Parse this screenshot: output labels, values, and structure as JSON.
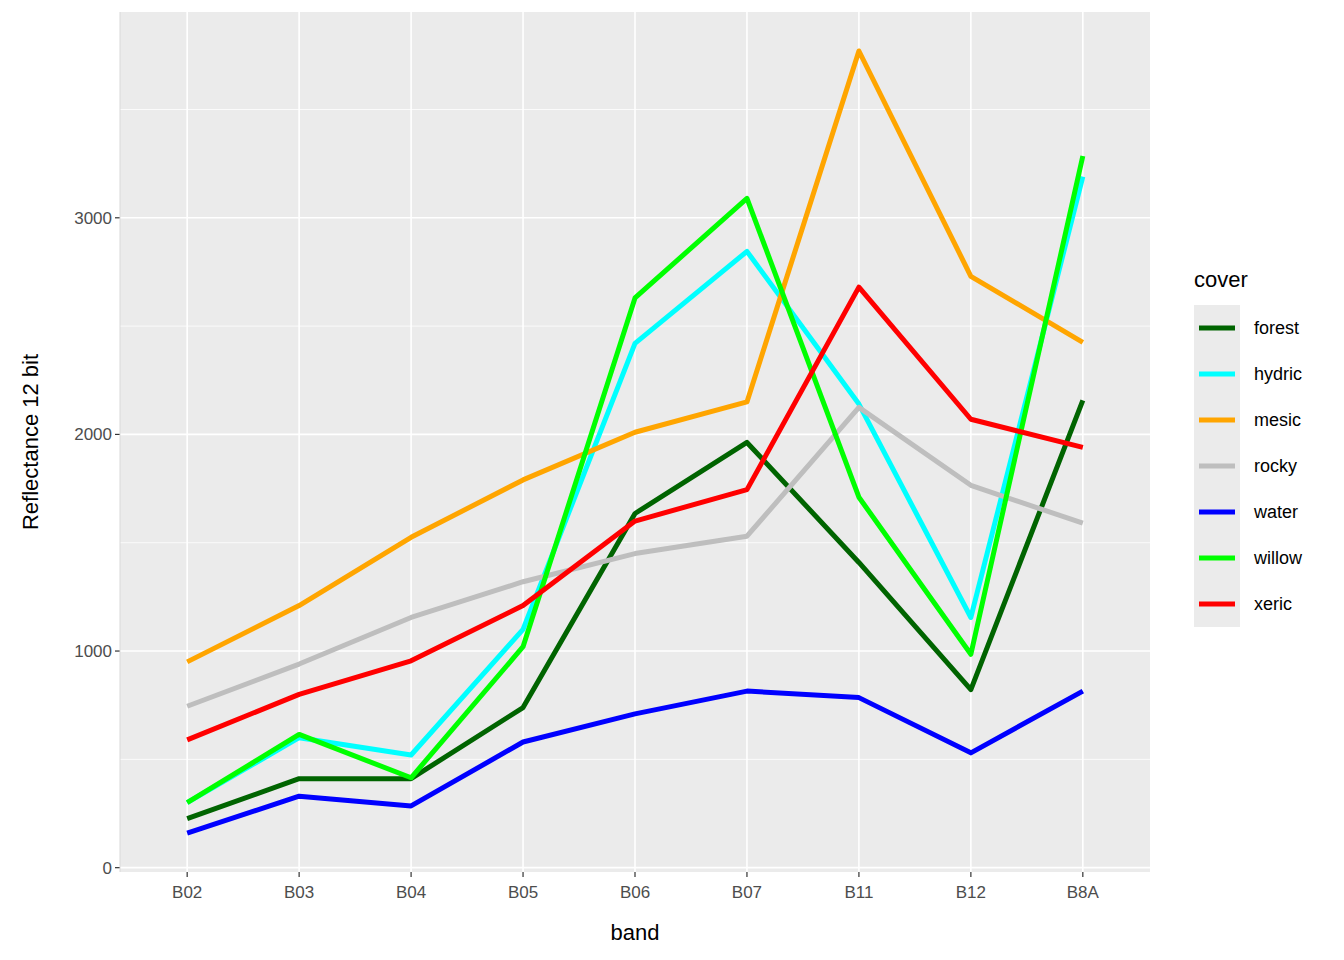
{
  "chart_data": {
    "type": "line",
    "x_label": "band",
    "y_label": "Reflectance 12 bit",
    "legend_title": "cover",
    "legend": "right",
    "grid": true,
    "categories": [
      "B02",
      "B03",
      "B04",
      "B05",
      "B06",
      "B07",
      "B11",
      "B12",
      "B8A"
    ],
    "ylim": [
      -20,
      3950
    ],
    "yticks": [
      0,
      1000,
      2000,
      3000
    ],
    "series": [
      {
        "name": "forest",
        "color": "#006400",
        "values": [
          226,
          411,
          411,
          739,
          1635,
          1963,
          1409,
          822,
          2157
        ]
      },
      {
        "name": "hydric",
        "color": "#00FFFF",
        "values": [
          300,
          600,
          520,
          1100,
          2420,
          2845,
          2140,
          1155,
          3190
        ]
      },
      {
        "name": "mesic",
        "color": "#FFA500",
        "values": [
          950,
          1210,
          1525,
          1790,
          2010,
          2150,
          3770,
          2730,
          2425
        ]
      },
      {
        "name": "rocky",
        "color": "#BEBEBE",
        "values": [
          745,
          940,
          1155,
          1320,
          1450,
          1530,
          2125,
          1765,
          1590
        ]
      },
      {
        "name": "water",
        "color": "#0000FF",
        "values": [
          160,
          330,
          285,
          580,
          710,
          815,
          785,
          530,
          815
        ]
      },
      {
        "name": "willow",
        "color": "#00FF00",
        "values": [
          300,
          615,
          415,
          1020,
          2630,
          3090,
          1710,
          985,
          3285
        ]
      },
      {
        "name": "xeric",
        "color": "#FF0000",
        "values": [
          590,
          800,
          955,
          1210,
          1600,
          1745,
          2680,
          2070,
          1940
        ]
      }
    ]
  }
}
